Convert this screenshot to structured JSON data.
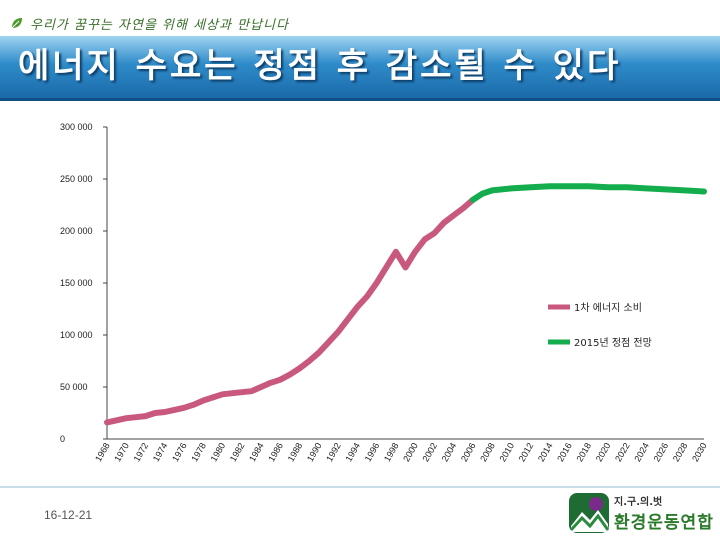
{
  "header": {
    "slogan": "우리가 꿈꾸는 자연을 위해 세상과 만납니다",
    "title": "에너지 수요는 정점 후 감소될 수 있다"
  },
  "footer": {
    "date": "16-12-21",
    "logo_top": "지.구.의.벗",
    "logo_main": "환경운동연합"
  },
  "colors": {
    "series_1": "#c8587e",
    "series_2": "#13ad4d"
  },
  "icons": {
    "slogan": "leaf-icon",
    "logo": "kfem-logo-icon"
  },
  "chart_data": {
    "type": "line",
    "title": "",
    "xlabel": "",
    "ylabel": "",
    "ylim": [
      0,
      300000
    ],
    "yticks": [
      0,
      50000,
      100000,
      150000,
      200000,
      250000,
      300000
    ],
    "ytick_labels": [
      "0",
      "50 000",
      "100 000",
      "150 000",
      "200 000",
      "250 000",
      "300 000"
    ],
    "xlim": [
      1968,
      2030
    ],
    "xticks": [
      1968,
      1970,
      1972,
      1974,
      1976,
      1978,
      1980,
      1982,
      1984,
      1986,
      1988,
      1990,
      1992,
      1994,
      1996,
      1998,
      2000,
      2002,
      2004,
      2006,
      2008,
      2010,
      2012,
      2014,
      2016,
      2018,
      2020,
      2022,
      2024,
      2026,
      2028,
      2030
    ],
    "grid": false,
    "legend_position": "right",
    "series": [
      {
        "name": "1차 에너지 소비",
        "x": [
          1968,
          1969,
          1970,
          1971,
          1972,
          1973,
          1974,
          1975,
          1976,
          1977,
          1978,
          1979,
          1980,
          1981,
          1982,
          1983,
          1984,
          1985,
          1986,
          1987,
          1988,
          1989,
          1990,
          1991,
          1992,
          1993,
          1994,
          1995,
          1996,
          1997,
          1998,
          1999,
          2000,
          2001,
          2002,
          2003,
          2004,
          2005,
          2006
        ],
        "values": [
          16000,
          18000,
          20000,
          21000,
          22000,
          25000,
          26000,
          28000,
          30000,
          33000,
          37000,
          40000,
          43000,
          44000,
          45000,
          46000,
          50000,
          54000,
          57000,
          62000,
          68000,
          75000,
          83000,
          93000,
          103000,
          115000,
          127000,
          137000,
          150000,
          165000,
          180000,
          165000,
          180000,
          192000,
          198000,
          208000,
          215000,
          222000,
          230000
        ]
      },
      {
        "name": "2015년 정점  전망",
        "x": [
          2006,
          2007,
          2008,
          2010,
          2012,
          2014,
          2016,
          2018,
          2020,
          2022,
          2024,
          2026,
          2028,
          2030
        ],
        "values": [
          230000,
          236000,
          239000,
          241000,
          242000,
          243000,
          243000,
          243000,
          242000,
          242000,
          241000,
          240000,
          239000,
          238000
        ]
      }
    ]
  }
}
